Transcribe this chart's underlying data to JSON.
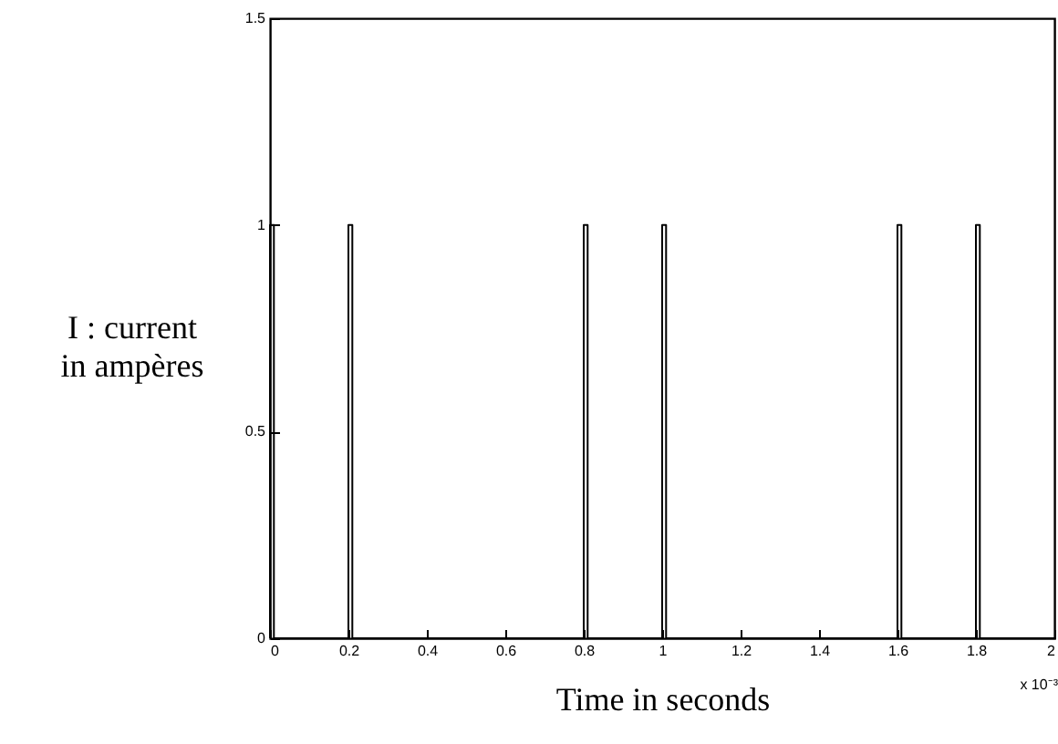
{
  "chart_data": {
    "type": "line",
    "xlabel": "Time in seconds",
    "ylabel": "I : current\nin ampères",
    "annotations": [
      "x 10⁻³"
    ],
    "x": [
      0,
      0,
      0.01,
      0.01,
      0.2,
      0.2,
      0.21,
      0.21,
      0.8,
      0.8,
      0.81,
      0.81,
      1,
      1,
      1.01,
      1.01,
      1.6,
      1.6,
      1.61,
      1.61,
      1.8,
      1.8,
      1.81,
      1.81,
      2
    ],
    "series": [
      {
        "color": "#000000",
        "values": [
          0,
          1,
          1,
          0,
          0,
          1,
          1,
          0,
          0,
          1,
          1,
          0,
          0,
          1,
          1,
          0,
          0,
          1,
          1,
          0,
          0,
          1,
          1,
          0,
          0
        ]
      }
    ],
    "xlim": [
      0,
      2
    ],
    "xticks": [
      0,
      0.2,
      0.4,
      0.6,
      0.8,
      1,
      1.2,
      1.4,
      1.6,
      1.8,
      2
    ],
    "ylim": [
      0,
      1.5
    ],
    "yticks": [
      0,
      0.5,
      1,
      1.5
    ],
    "grid": false,
    "marker": "none",
    "line_style": "solid"
  }
}
